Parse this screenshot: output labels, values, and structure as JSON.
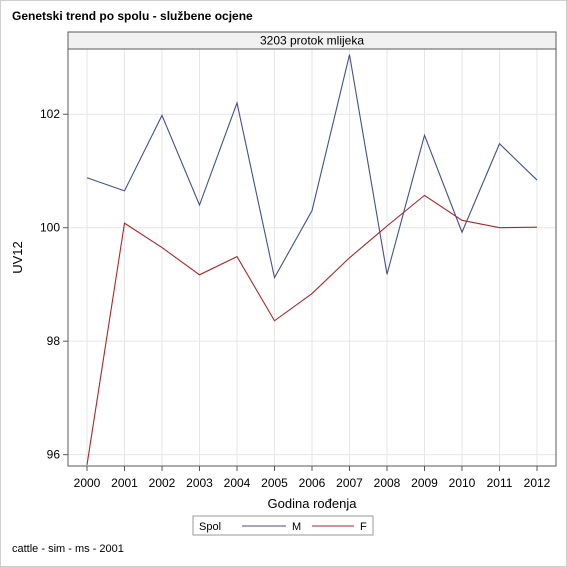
{
  "page_title": "Genetski trend po spolu - službene ocjene",
  "footnote": "cattle - sim - ms - 2001",
  "colors": {
    "M": "#44508a",
    "F": "#a32a2a",
    "grid": "#e6e6e6",
    "frame": "#5a5a5a",
    "panel_header": "#f1f1f1"
  },
  "chart_data": {
    "type": "line",
    "title": "Genetski trend po spolu - službene ocjene",
    "panel_label": "3203 protok mlijeka",
    "xlabel": "Godina rođenja",
    "ylabel": "UV12",
    "x": [
      2000,
      2001,
      2002,
      2003,
      2004,
      2005,
      2006,
      2007,
      2008,
      2009,
      2010,
      2011,
      2012
    ],
    "x_ticks": [
      "2000",
      "2001",
      "2002",
      "2003",
      "2004",
      "2005",
      "2006",
      "2007",
      "2008",
      "2009",
      "2010",
      "2011",
      "2012"
    ],
    "y_ticks": [
      96,
      98,
      100,
      102
    ],
    "ylim": [
      95.8,
      103.15
    ],
    "grid": true,
    "legend": {
      "title": "Spol",
      "position": "bottom"
    },
    "series": [
      {
        "name": "M",
        "values": [
          100.88,
          100.65,
          101.98,
          100.4,
          102.2,
          99.12,
          100.3,
          103.05,
          99.18,
          101.63,
          99.92,
          101.48,
          100.84
        ]
      },
      {
        "name": "F",
        "values": [
          95.82,
          100.08,
          99.65,
          99.17,
          99.49,
          98.36,
          98.84,
          99.47,
          100.03,
          100.57,
          100.13,
          100.0,
          100.01
        ]
      }
    ]
  }
}
